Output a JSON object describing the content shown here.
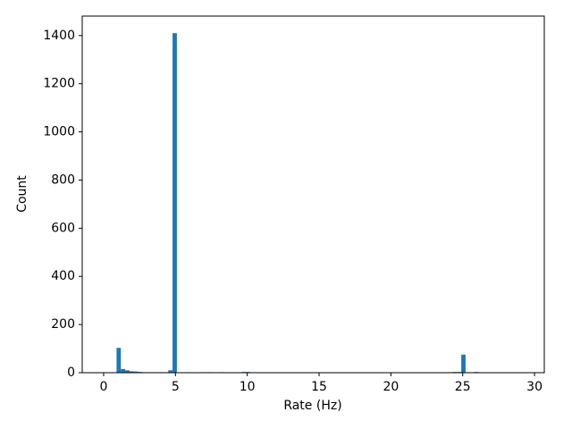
{
  "chart_data": {
    "type": "histogram",
    "xlabel": "Rate (Hz)",
    "ylabel": "Count",
    "color": "#1f77b4",
    "bins": [
      0,
      0.3,
      0.6,
      0.9,
      1.2,
      1.5,
      1.8,
      2.1,
      2.4,
      2.7,
      3.0,
      3.3,
      3.6,
      3.9,
      4.2,
      4.5,
      4.8,
      5.1,
      5.4,
      5.7,
      6.0,
      6.3,
      6.6,
      6.9,
      7.2,
      7.5,
      7.8,
      8.1,
      8.4,
      8.7,
      9.0,
      9.3,
      9.6,
      9.9,
      10.2,
      10.5,
      10.8,
      11.1,
      11.4,
      11.7,
      12.0,
      12.3,
      12.6,
      12.9,
      13.2,
      13.5,
      13.8,
      14.1,
      14.4,
      14.7,
      15.0,
      15.3,
      15.6,
      15.9,
      16.2,
      16.5,
      16.8,
      17.1,
      17.4,
      17.7,
      18.0,
      18.3,
      18.6,
      18.9,
      19.2,
      19.5,
      19.8,
      20.1,
      20.4,
      20.7,
      21.0,
      21.3,
      21.6,
      21.9,
      22.2,
      22.5,
      22.8,
      23.1,
      23.4,
      23.7,
      24.0,
      24.3,
      24.6,
      24.9,
      25.2,
      25.5,
      25.8,
      26.1,
      26.4,
      26.7,
      27.0,
      27.3,
      27.6,
      27.9,
      28.2,
      28.5,
      28.8,
      29.1
    ],
    "values": [
      0,
      0,
      0,
      103,
      15,
      10,
      6,
      5,
      3,
      2,
      2,
      2,
      1,
      2,
      1,
      10,
      1410,
      0,
      0,
      2,
      0,
      0,
      2,
      0,
      2,
      0,
      0,
      2,
      0,
      0,
      0,
      0,
      3,
      3,
      0,
      0,
      0,
      0,
      0,
      0,
      0,
      0,
      0,
      0,
      0,
      0,
      0,
      0,
      0,
      0,
      0,
      0,
      0,
      0,
      0,
      0,
      0,
      0,
      0,
      0,
      0,
      0,
      0,
      0,
      0,
      0,
      0,
      0,
      0,
      0,
      0,
      0,
      0,
      0,
      0,
      0,
      0,
      0,
      0,
      0,
      0,
      3,
      3,
      75,
      2,
      0,
      3,
      0,
      0,
      0,
      0,
      0,
      0,
      0,
      0,
      0,
      0
    ],
    "xlim": [
      -1.49,
      30.68
    ],
    "xticks": [
      0,
      5,
      10,
      15,
      20,
      25,
      30
    ],
    "ylim": [
      0,
      1481
    ],
    "yticks": [
      0,
      200,
      400,
      600,
      800,
      1000,
      1200,
      1400
    ]
  }
}
